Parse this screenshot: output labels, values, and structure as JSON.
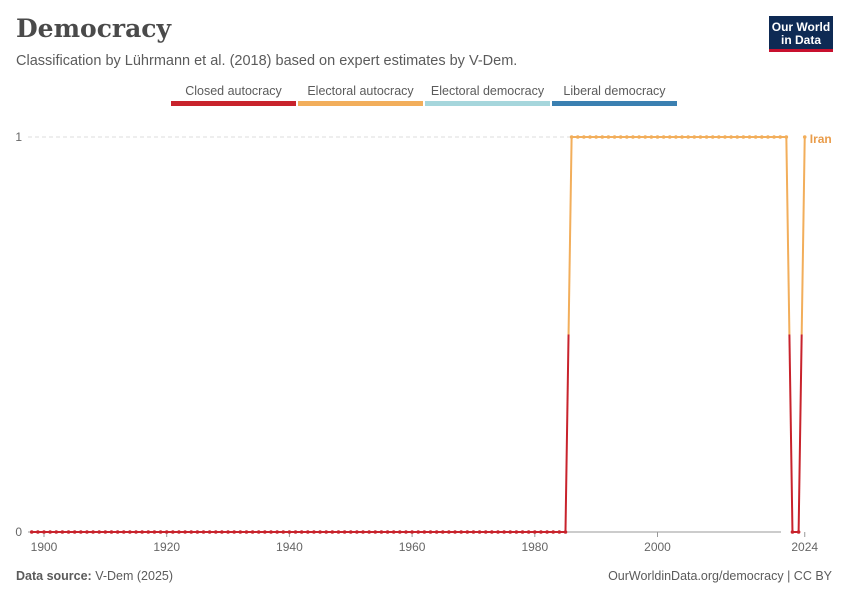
{
  "header": {
    "title": "Democracy",
    "subtitle": "Classification by Lührmann et al. (2018) based on expert estimates by V-Dem."
  },
  "logo": {
    "line1": "Our World",
    "line2": "in Data"
  },
  "footer": {
    "source_label": "Data source:",
    "source_value": "V-Dem (2025)",
    "url": "OurWorldinData.org/democracy | CC BY"
  },
  "colors": {
    "closed_autocracy": "#c8232c",
    "electoral_autocracy": "#f2ae5b",
    "electoral_democracy": "#a6d6dc",
    "liberal_democracy": "#3b80b1",
    "entity_label": "#e99c4a"
  },
  "chart_data": {
    "type": "line",
    "title": "Democracy",
    "subtitle": "Classification by Lührmann et al. (2018) based on expert estimates by V-Dem.",
    "legend": {
      "placement": "top",
      "entries": [
        "Closed autocracy",
        "Electoral autocracy",
        "Electoral democracy",
        "Liberal democracy"
      ]
    },
    "xlim": [
      1900,
      2024
    ],
    "ylim": [
      0,
      1
    ],
    "x_ticks": [
      1900,
      1920,
      1940,
      1960,
      1980,
      2000,
      2024
    ],
    "y_ticks": [
      0,
      1
    ],
    "grid": "horizontal dashed",
    "series": [
      {
        "name": "Iran",
        "segments": [
          {
            "x_start": 1898,
            "x_end": 1985,
            "value": 0
          },
          {
            "x_start": 1986,
            "x_end": 2021,
            "value": 1
          },
          {
            "x_start": 2022,
            "x_end": 2023,
            "value": 0
          },
          {
            "x_start": 2024,
            "x_end": 2024,
            "value": 1
          }
        ]
      }
    ]
  }
}
